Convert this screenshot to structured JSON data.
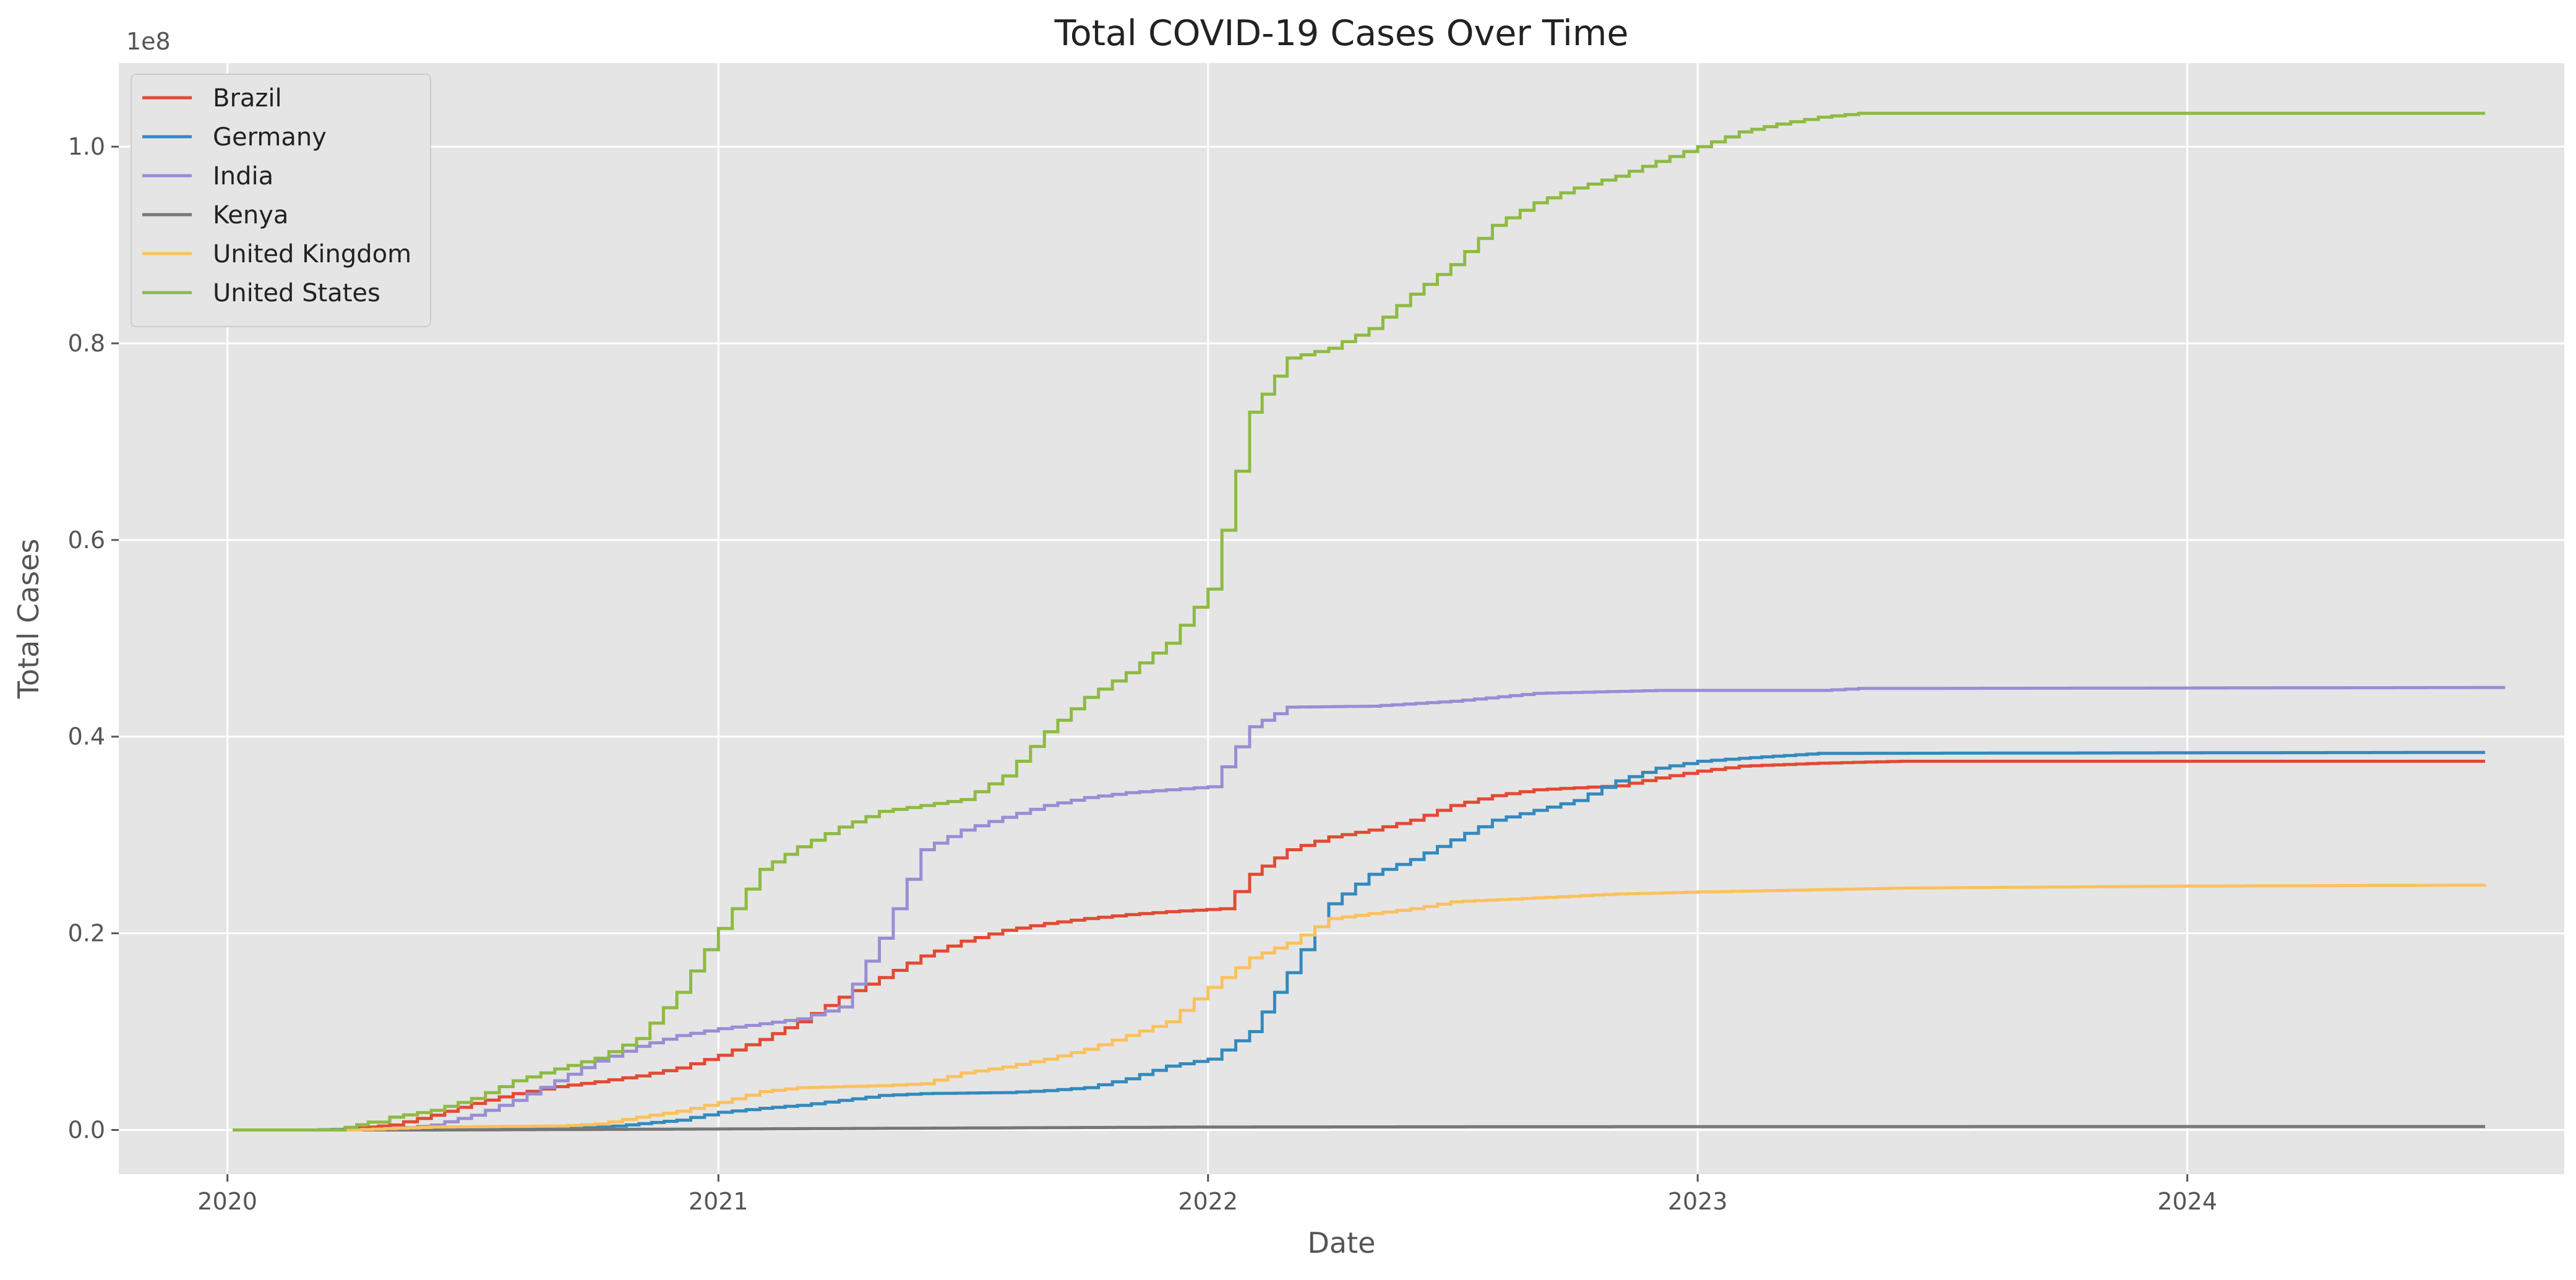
{
  "chart_data": {
    "type": "line",
    "title": "Total COVID-19 Cases Over Time",
    "xlabel": "Date",
    "ylabel": "Total Cases",
    "y_offset_label": "1e8",
    "x_ticks": [
      "2020",
      "2021",
      "2022",
      "2023",
      "2024"
    ],
    "y_ticks": [
      "0.0",
      "0.2",
      "0.4",
      "0.6",
      "0.8",
      "1.0"
    ],
    "xlim": [
      "2019-10-12",
      "2024-10-08"
    ],
    "ylim": [
      -4500000,
      108500000
    ],
    "grid": true,
    "legend_position": "top-left",
    "step": true,
    "series": [
      {
        "name": "Brazil",
        "color": "#E24A33",
        "points": [
          [
            "2020-01-05",
            0
          ],
          [
            "2020-03-20",
            0
          ],
          [
            "2020-05-01",
            500000
          ],
          [
            "2020-06-01",
            1500000
          ],
          [
            "2020-07-01",
            2700000
          ],
          [
            "2020-08-01",
            3700000
          ],
          [
            "2020-09-01",
            4400000
          ],
          [
            "2020-10-01",
            4900000
          ],
          [
            "2020-11-01",
            5500000
          ],
          [
            "2020-12-01",
            6300000
          ],
          [
            "2021-01-01",
            7600000
          ],
          [
            "2021-02-01",
            9200000
          ],
          [
            "2021-03-01",
            11000000
          ],
          [
            "2021-04-01",
            13500000
          ],
          [
            "2021-05-01",
            15500000
          ],
          [
            "2021-06-01",
            17700000
          ],
          [
            "2021-07-01",
            19200000
          ],
          [
            "2021-08-01",
            20300000
          ],
          [
            "2021-09-01",
            21000000
          ],
          [
            "2021-10-01",
            21500000
          ],
          [
            "2021-11-01",
            21900000
          ],
          [
            "2021-12-01",
            22200000
          ],
          [
            "2022-01-10",
            22500000
          ],
          [
            "2022-02-01",
            26000000
          ],
          [
            "2022-03-01",
            28500000
          ],
          [
            "2022-04-01",
            29800000
          ],
          [
            "2022-05-01",
            30500000
          ],
          [
            "2022-06-01",
            31500000
          ],
          [
            "2022-07-01",
            33000000
          ],
          [
            "2022-08-01",
            34000000
          ],
          [
            "2022-09-01",
            34600000
          ],
          [
            "2022-10-01",
            34800000
          ],
          [
            "2022-11-01",
            35000000
          ],
          [
            "2022-12-01",
            35800000
          ],
          [
            "2023-01-01",
            36500000
          ],
          [
            "2023-02-01",
            37000000
          ],
          [
            "2023-04-01",
            37300000
          ],
          [
            "2023-06-01",
            37500000
          ],
          [
            "2024-08-10",
            37500000
          ]
        ]
      },
      {
        "name": "Germany",
        "color": "#348ABD",
        "points": [
          [
            "2020-01-05",
            0
          ],
          [
            "2020-03-01",
            0
          ],
          [
            "2020-05-01",
            150000
          ],
          [
            "2020-09-01",
            250000
          ],
          [
            "2020-10-15",
            400000
          ],
          [
            "2020-12-01",
            1000000
          ],
          [
            "2021-01-01",
            1800000
          ],
          [
            "2021-02-01",
            2200000
          ],
          [
            "2021-03-01",
            2500000
          ],
          [
            "2021-04-01",
            3000000
          ],
          [
            "2021-05-01",
            3500000
          ],
          [
            "2021-06-01",
            3700000
          ],
          [
            "2021-08-01",
            3800000
          ],
          [
            "2021-09-01",
            4000000
          ],
          [
            "2021-10-01",
            4300000
          ],
          [
            "2021-11-01",
            5200000
          ],
          [
            "2021-12-01",
            6500000
          ],
          [
            "2022-01-01",
            7200000
          ],
          [
            "2022-02-01",
            10000000
          ],
          [
            "2022-03-01",
            16000000
          ],
          [
            "2022-04-01",
            23000000
          ],
          [
            "2022-05-01",
            26000000
          ],
          [
            "2022-06-01",
            27500000
          ],
          [
            "2022-07-01",
            29500000
          ],
          [
            "2022-08-01",
            31500000
          ],
          [
            "2022-09-01",
            32500000
          ],
          [
            "2022-10-01",
            33500000
          ],
          [
            "2022-11-01",
            35500000
          ],
          [
            "2022-12-01",
            36800000
          ],
          [
            "2023-01-01",
            37500000
          ],
          [
            "2023-02-01",
            37800000
          ],
          [
            "2023-04-01",
            38300000
          ],
          [
            "2024-08-10",
            38400000
          ]
        ]
      },
      {
        "name": "India",
        "color": "#988ED5",
        "points": [
          [
            "2020-01-05",
            0
          ],
          [
            "2020-04-01",
            0
          ],
          [
            "2020-05-01",
            100000
          ],
          [
            "2020-06-01",
            500000
          ],
          [
            "2020-07-01",
            1500000
          ],
          [
            "2020-08-01",
            3000000
          ],
          [
            "2020-09-01",
            5000000
          ],
          [
            "2020-10-01",
            7000000
          ],
          [
            "2020-11-01",
            8500000
          ],
          [
            "2020-12-01",
            9600000
          ],
          [
            "2021-01-01",
            10300000
          ],
          [
            "2021-02-01",
            10800000
          ],
          [
            "2021-03-01",
            11300000
          ],
          [
            "2021-04-01",
            12500000
          ],
          [
            "2021-05-01",
            19500000
          ],
          [
            "2021-06-01",
            28500000
          ],
          [
            "2021-07-01",
            30500000
          ],
          [
            "2021-08-01",
            31800000
          ],
          [
            "2021-09-01",
            33000000
          ],
          [
            "2021-10-01",
            33800000
          ],
          [
            "2021-11-01",
            34300000
          ],
          [
            "2021-12-01",
            34600000
          ],
          [
            "2022-01-01",
            34900000
          ],
          [
            "2022-02-01",
            41000000
          ],
          [
            "2022-03-01",
            43000000
          ],
          [
            "2022-05-01",
            43100000
          ],
          [
            "2022-07-01",
            43600000
          ],
          [
            "2022-09-01",
            44400000
          ],
          [
            "2022-12-01",
            44700000
          ],
          [
            "2023-04-01",
            44700000
          ],
          [
            "2023-05-01",
            44900000
          ],
          [
            "2024-08-25",
            45000000
          ]
        ]
      },
      {
        "name": "Kenya",
        "color": "#777777",
        "points": [
          [
            "2020-01-05",
            0
          ],
          [
            "2020-06-01",
            0
          ],
          [
            "2021-01-01",
            100000
          ],
          [
            "2021-06-01",
            180000
          ],
          [
            "2022-01-01",
            300000
          ],
          [
            "2022-12-01",
            340000
          ],
          [
            "2024-08-10",
            344000
          ]
        ]
      },
      {
        "name": "United Kingdom",
        "color": "#FBC15E",
        "points": [
          [
            "2020-01-05",
            0
          ],
          [
            "2020-04-01",
            0
          ],
          [
            "2020-06-01",
            300000
          ],
          [
            "2020-09-01",
            400000
          ],
          [
            "2020-10-01",
            600000
          ],
          [
            "2020-11-01",
            1300000
          ],
          [
            "2020-12-01",
            1900000
          ],
          [
            "2021-01-01",
            2800000
          ],
          [
            "2021-02-01",
            3900000
          ],
          [
            "2021-03-01",
            4300000
          ],
          [
            "2021-05-01",
            4500000
          ],
          [
            "2021-06-01",
            4700000
          ],
          [
            "2021-07-01",
            5800000
          ],
          [
            "2021-08-01",
            6400000
          ],
          [
            "2021-09-01",
            7200000
          ],
          [
            "2021-10-01",
            8200000
          ],
          [
            "2021-11-01",
            9600000
          ],
          [
            "2021-12-01",
            11000000
          ],
          [
            "2022-01-01",
            14500000
          ],
          [
            "2022-02-01",
            17500000
          ],
          [
            "2022-03-01",
            19000000
          ],
          [
            "2022-04-01",
            21500000
          ],
          [
            "2022-05-01",
            22000000
          ],
          [
            "2022-06-01",
            22500000
          ],
          [
            "2022-07-01",
            23200000
          ],
          [
            "2022-09-01",
            23600000
          ],
          [
            "2022-11-01",
            24000000
          ],
          [
            "2023-01-01",
            24200000
          ],
          [
            "2023-06-01",
            24600000
          ],
          [
            "2024-01-01",
            24800000
          ],
          [
            "2024-08-10",
            24900000
          ]
        ]
      },
      {
        "name": "United States",
        "color": "#8EBA42",
        "points": [
          [
            "2020-01-05",
            0
          ],
          [
            "2020-03-20",
            0
          ],
          [
            "2020-04-15",
            800000
          ],
          [
            "2020-05-01",
            1300000
          ],
          [
            "2020-06-01",
            2000000
          ],
          [
            "2020-07-01",
            3200000
          ],
          [
            "2020-08-01",
            5000000
          ],
          [
            "2020-09-01",
            6200000
          ],
          [
            "2020-10-01",
            7300000
          ],
          [
            "2020-11-01",
            9300000
          ],
          [
            "2020-12-01",
            14000000
          ],
          [
            "2021-01-01",
            20500000
          ],
          [
            "2021-02-01",
            26500000
          ],
          [
            "2021-03-01",
            28800000
          ],
          [
            "2021-04-01",
            30800000
          ],
          [
            "2021-05-01",
            32400000
          ],
          [
            "2021-06-01",
            33000000
          ],
          [
            "2021-07-01",
            33600000
          ],
          [
            "2021-08-01",
            36000000
          ],
          [
            "2021-09-01",
            40500000
          ],
          [
            "2021-10-01",
            44000000
          ],
          [
            "2021-11-01",
            46500000
          ],
          [
            "2021-12-01",
            49500000
          ],
          [
            "2022-01-01",
            55000000
          ],
          [
            "2022-02-01",
            73000000
          ],
          [
            "2022-03-01",
            78500000
          ],
          [
            "2022-04-01",
            79500000
          ],
          [
            "2022-05-01",
            81500000
          ],
          [
            "2022-06-01",
            85000000
          ],
          [
            "2022-07-01",
            88000000
          ],
          [
            "2022-08-01",
            92000000
          ],
          [
            "2022-09-01",
            94300000
          ],
          [
            "2022-10-01",
            95800000
          ],
          [
            "2022-11-01",
            97000000
          ],
          [
            "2022-12-01",
            98500000
          ],
          [
            "2023-01-01",
            100000000
          ],
          [
            "2023-02-01",
            101500000
          ],
          [
            "2023-03-01",
            102300000
          ],
          [
            "2023-04-01",
            103000000
          ],
          [
            "2023-05-01",
            103400000
          ],
          [
            "2024-08-10",
            103400000
          ]
        ]
      }
    ]
  }
}
